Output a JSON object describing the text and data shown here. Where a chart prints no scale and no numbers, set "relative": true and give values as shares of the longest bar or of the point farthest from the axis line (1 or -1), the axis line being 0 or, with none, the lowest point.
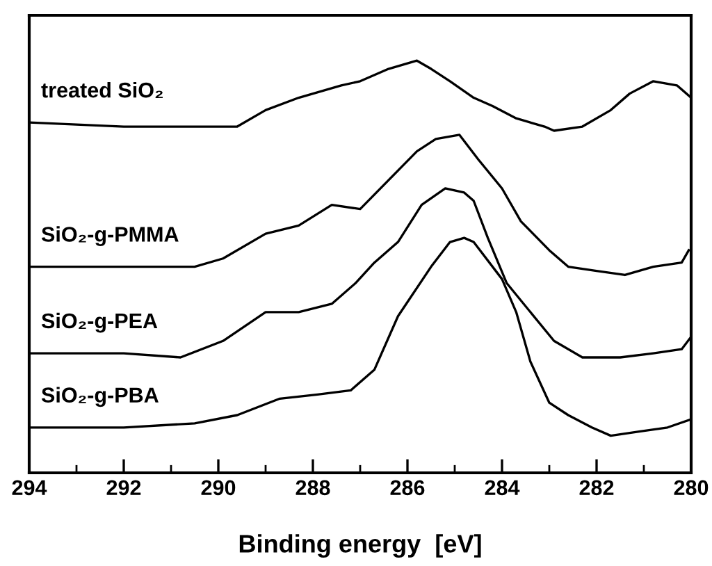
{
  "chart_data": {
    "type": "line",
    "relative": true,
    "xlabel": "Binding energy  [eV]",
    "xlim": [
      294,
      280
    ],
    "xticks": [
      294,
      {
        "value": 293,
        "label": null
      },
      292,
      {
        "value": 291,
        "label": null
      },
      290,
      {
        "value": 289,
        "label": null
      },
      288,
      {
        "value": 287,
        "label": null
      },
      286,
      {
        "value": 285,
        "label": null
      },
      284,
      {
        "value": 283,
        "label": null
      },
      282,
      {
        "value": 281,
        "label": null
      },
      280
    ],
    "grid": false,
    "legend": false,
    "marker": "none",
    "line_style": "solid",
    "series": [
      {
        "name": "treated SiO₂",
        "color": "#000000",
        "x": [
          294,
          292,
          290.5,
          289.6,
          289,
          288.3,
          287.4,
          287,
          286.4,
          285.8,
          285.5,
          285.1,
          284.6,
          284.2,
          283.7,
          283.1,
          282.9,
          282.3,
          281.7,
          281.3,
          280.8,
          280.3,
          280
        ],
        "values": [
          0.85,
          0.84,
          0.84,
          0.84,
          0.88,
          0.91,
          0.94,
          0.95,
          0.98,
          1.0,
          0.98,
          0.95,
          0.91,
          0.89,
          0.86,
          0.84,
          0.83,
          0.84,
          0.88,
          0.92,
          0.95,
          0.94,
          0.91
        ]
      },
      {
        "name": "SiO₂-g-PMMA",
        "color": "#000000",
        "x": [
          294,
          292,
          290.5,
          289.9,
          289,
          288.3,
          287.6,
          287,
          286.4,
          285.8,
          285.4,
          284.9,
          284.5,
          284,
          283.6,
          283,
          282.6,
          282,
          281.4,
          280.8,
          280.2,
          280.05
        ],
        "values": [
          0.5,
          0.5,
          0.5,
          0.52,
          0.58,
          0.6,
          0.65,
          0.64,
          0.71,
          0.78,
          0.81,
          0.82,
          0.76,
          0.69,
          0.61,
          0.54,
          0.5,
          0.49,
          0.48,
          0.5,
          0.51,
          0.54
        ]
      },
      {
        "name": "SiO₂-g-PEA",
        "color": "#000000",
        "x": [
          294,
          292,
          290.8,
          289.9,
          289,
          288.3,
          287.6,
          287.1,
          286.7,
          286.2,
          285.7,
          285.2,
          284.8,
          284.6,
          284.3,
          283.9,
          283.4,
          282.9,
          282.3,
          281.5,
          280.8,
          280.2,
          280
        ],
        "values": [
          0.29,
          0.29,
          0.28,
          0.32,
          0.39,
          0.39,
          0.41,
          0.46,
          0.51,
          0.56,
          0.65,
          0.69,
          0.68,
          0.66,
          0.57,
          0.46,
          0.39,
          0.32,
          0.28,
          0.28,
          0.29,
          0.3,
          0.33
        ]
      },
      {
        "name": "SiO₂-g-PBA",
        "color": "#000000",
        "x": [
          294,
          292,
          290.5,
          289.6,
          288.7,
          287.9,
          287.2,
          286.7,
          286.2,
          285.5,
          285.1,
          284.8,
          284.6,
          284,
          283.7,
          283.4,
          283,
          282.6,
          282.1,
          281.7,
          281.1,
          280.5,
          280
        ],
        "values": [
          0.11,
          0.11,
          0.12,
          0.14,
          0.18,
          0.19,
          0.2,
          0.25,
          0.38,
          0.5,
          0.56,
          0.57,
          0.56,
          0.47,
          0.39,
          0.27,
          0.17,
          0.14,
          0.11,
          0.09,
          0.1,
          0.11,
          0.13
        ]
      }
    ]
  }
}
